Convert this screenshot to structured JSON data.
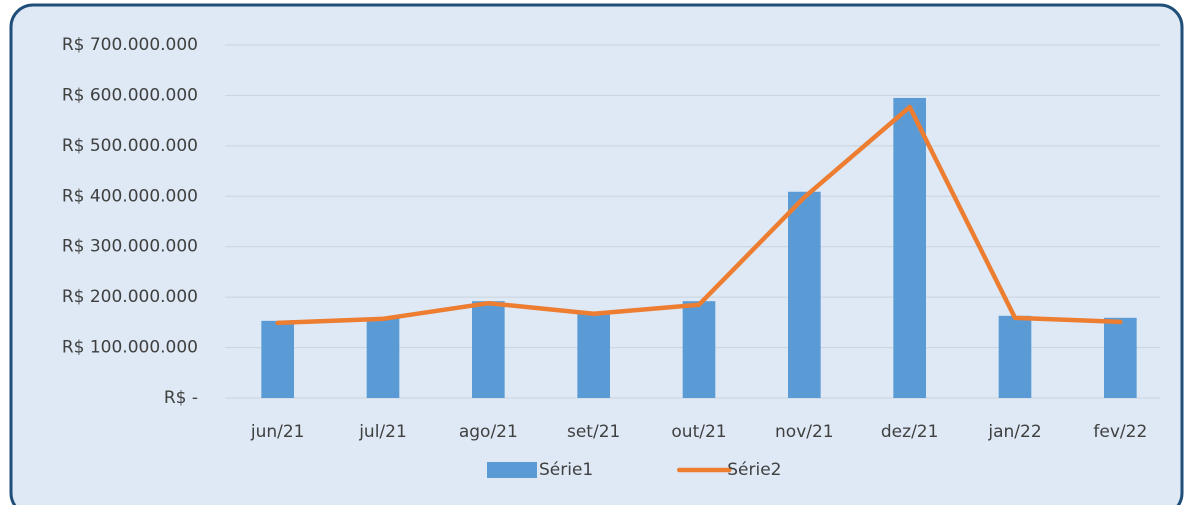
{
  "chart_data": {
    "type": "bar_line",
    "categories": [
      "jun/21",
      "jul/21",
      "ago/21",
      "set/21",
      "out/21",
      "nov/21",
      "dez/21",
      "jan/22",
      "fev/22"
    ],
    "series": [
      {
        "name": "Série1",
        "color": "#5b9bd5",
        "type": "bar",
        "values": [
          153000000,
          159000000,
          192000000,
          171000000,
          192000000,
          409000000,
          595000000,
          163000000,
          159000000
        ]
      },
      {
        "name": "Série2",
        "color": "#ed7d31",
        "type": "line",
        "values": [
          149000000,
          157000000,
          188000000,
          167000000,
          185000000,
          398000000,
          577000000,
          159000000,
          151000000
        ]
      }
    ],
    "ylim": [
      0,
      700000000
    ],
    "yticks": [
      {
        "value": 0,
        "label": "R$ -"
      },
      {
        "value": 100000000,
        "label": "R$ 100.000.000"
      },
      {
        "value": 200000000,
        "label": "R$ 200.000.000"
      },
      {
        "value": 300000000,
        "label": "R$ 300.000.000"
      },
      {
        "value": 400000000,
        "label": "R$ 400.000.000"
      },
      {
        "value": 500000000,
        "label": "R$ 500.000.000"
      },
      {
        "value": 600000000,
        "label": "R$ 600.000.000"
      },
      {
        "value": 700000000,
        "label": "R$ 700.000.000"
      }
    ],
    "grid": true,
    "legend": "bottom"
  }
}
